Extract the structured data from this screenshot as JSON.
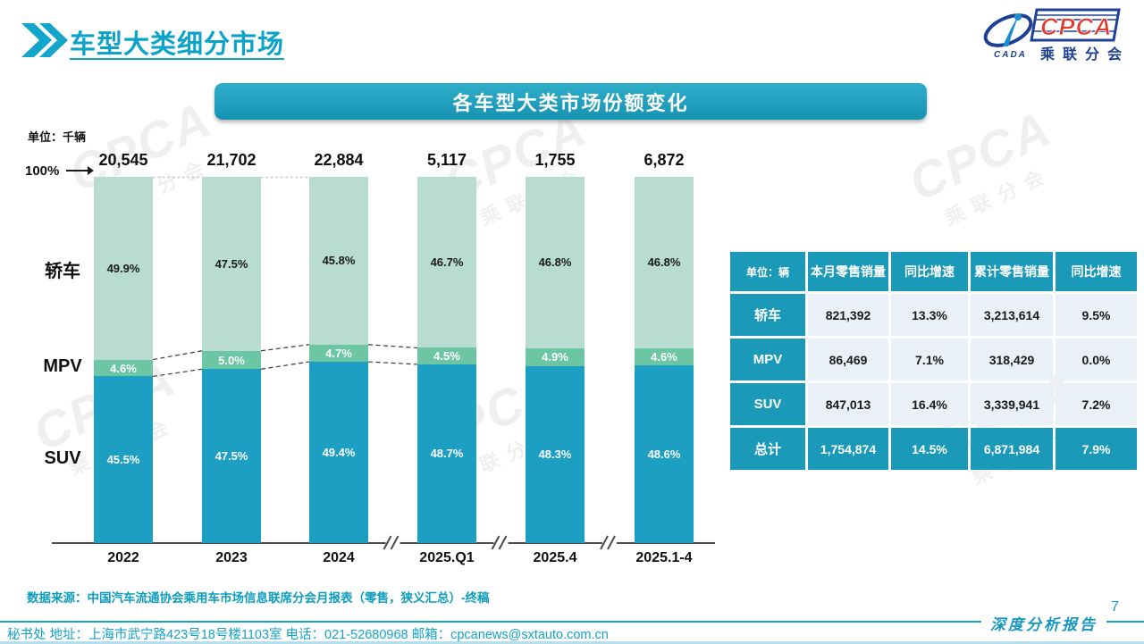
{
  "header": {
    "title": "车型大类细分市场"
  },
  "logo": {
    "acronym": "CPCA",
    "subtitle": "乘联分会",
    "emblem_text": "CADA"
  },
  "banner": {
    "title": "各车型大类市场份额变化"
  },
  "chart_data": {
    "type": "bar",
    "stacked": true,
    "title": "各车型大类市场份额变化",
    "unit_label": "单位：千辆",
    "axis_top_label": "100%",
    "grid": false,
    "ylim": [
      0,
      100
    ],
    "legend_position": "left",
    "categories": [
      "2022",
      "2023",
      "2024",
      "2025.Q1",
      "2025.4",
      "2025.1-4"
    ],
    "totals": [
      "20,545",
      "21,702",
      "22,884",
      "5,117",
      "1,755",
      "6,872"
    ],
    "series": [
      {
        "key": "sedan",
        "name": "轿车",
        "color": "#b9dcd2",
        "label_color": "#1a1a1a",
        "values": [
          49.9,
          47.5,
          45.8,
          46.7,
          46.8,
          46.8
        ]
      },
      {
        "key": "mpv",
        "name": "MPV",
        "color": "#6cc6a3",
        "label_color": "#ffffff",
        "values": [
          4.6,
          5.0,
          4.7,
          4.5,
          4.9,
          4.6
        ]
      },
      {
        "key": "suv",
        "name": "SUV",
        "color": "#1d9fc4",
        "label_color": "#ffffff",
        "values": [
          45.5,
          47.5,
          49.4,
          48.7,
          48.3,
          48.6
        ]
      }
    ],
    "axis_breaks_between": [
      [
        2,
        3
      ],
      [
        3,
        4
      ],
      [
        4,
        5
      ]
    ],
    "mpv_connector_gaps": [
      [
        0,
        1
      ],
      [
        1,
        2
      ],
      [
        2,
        3
      ]
    ]
  },
  "table": {
    "unit_header": "单位：辆",
    "columns": [
      "本月零售销量",
      "同比增速",
      "累计零售销量",
      "同比增速"
    ],
    "rows": [
      {
        "label": "轿车",
        "cells": [
          "821,392",
          "13.3%",
          "3,213,614",
          "9.5%"
        ]
      },
      {
        "label": "MPV",
        "cells": [
          "86,469",
          "7.1%",
          "318,429",
          "0.0%"
        ]
      },
      {
        "label": "SUV",
        "cells": [
          "847,013",
          "16.4%",
          "3,339,941",
          "7.2%"
        ]
      },
      {
        "label": "总计",
        "cells": [
          "1,754,874",
          "14.5%",
          "6,871,984",
          "7.9%"
        ]
      }
    ]
  },
  "footer": {
    "source": "数据来源：中国汽车流通协会乘用车市场信息联席分会月报表（零售，狭义汇总）-终稿",
    "page_number": "7",
    "contact": "秘书处  地址：上海市武宁路423号18号楼1103室 电话：021-52680968  邮箱：cpcanews@sxtauto.com.cn",
    "report_type": "深度分析报告"
  },
  "watermark": {
    "text": "CPCA",
    "subtext": "乘联分会"
  },
  "colors": {
    "accent_teal": "#1b99b9",
    "title_teal": "#0ba3c8",
    "sedan": "#b9dcd2",
    "mpv": "#6cc6a3",
    "suv": "#1d9fc4",
    "logo_blue": "#1d3f94",
    "logo_red": "#e0392f"
  }
}
